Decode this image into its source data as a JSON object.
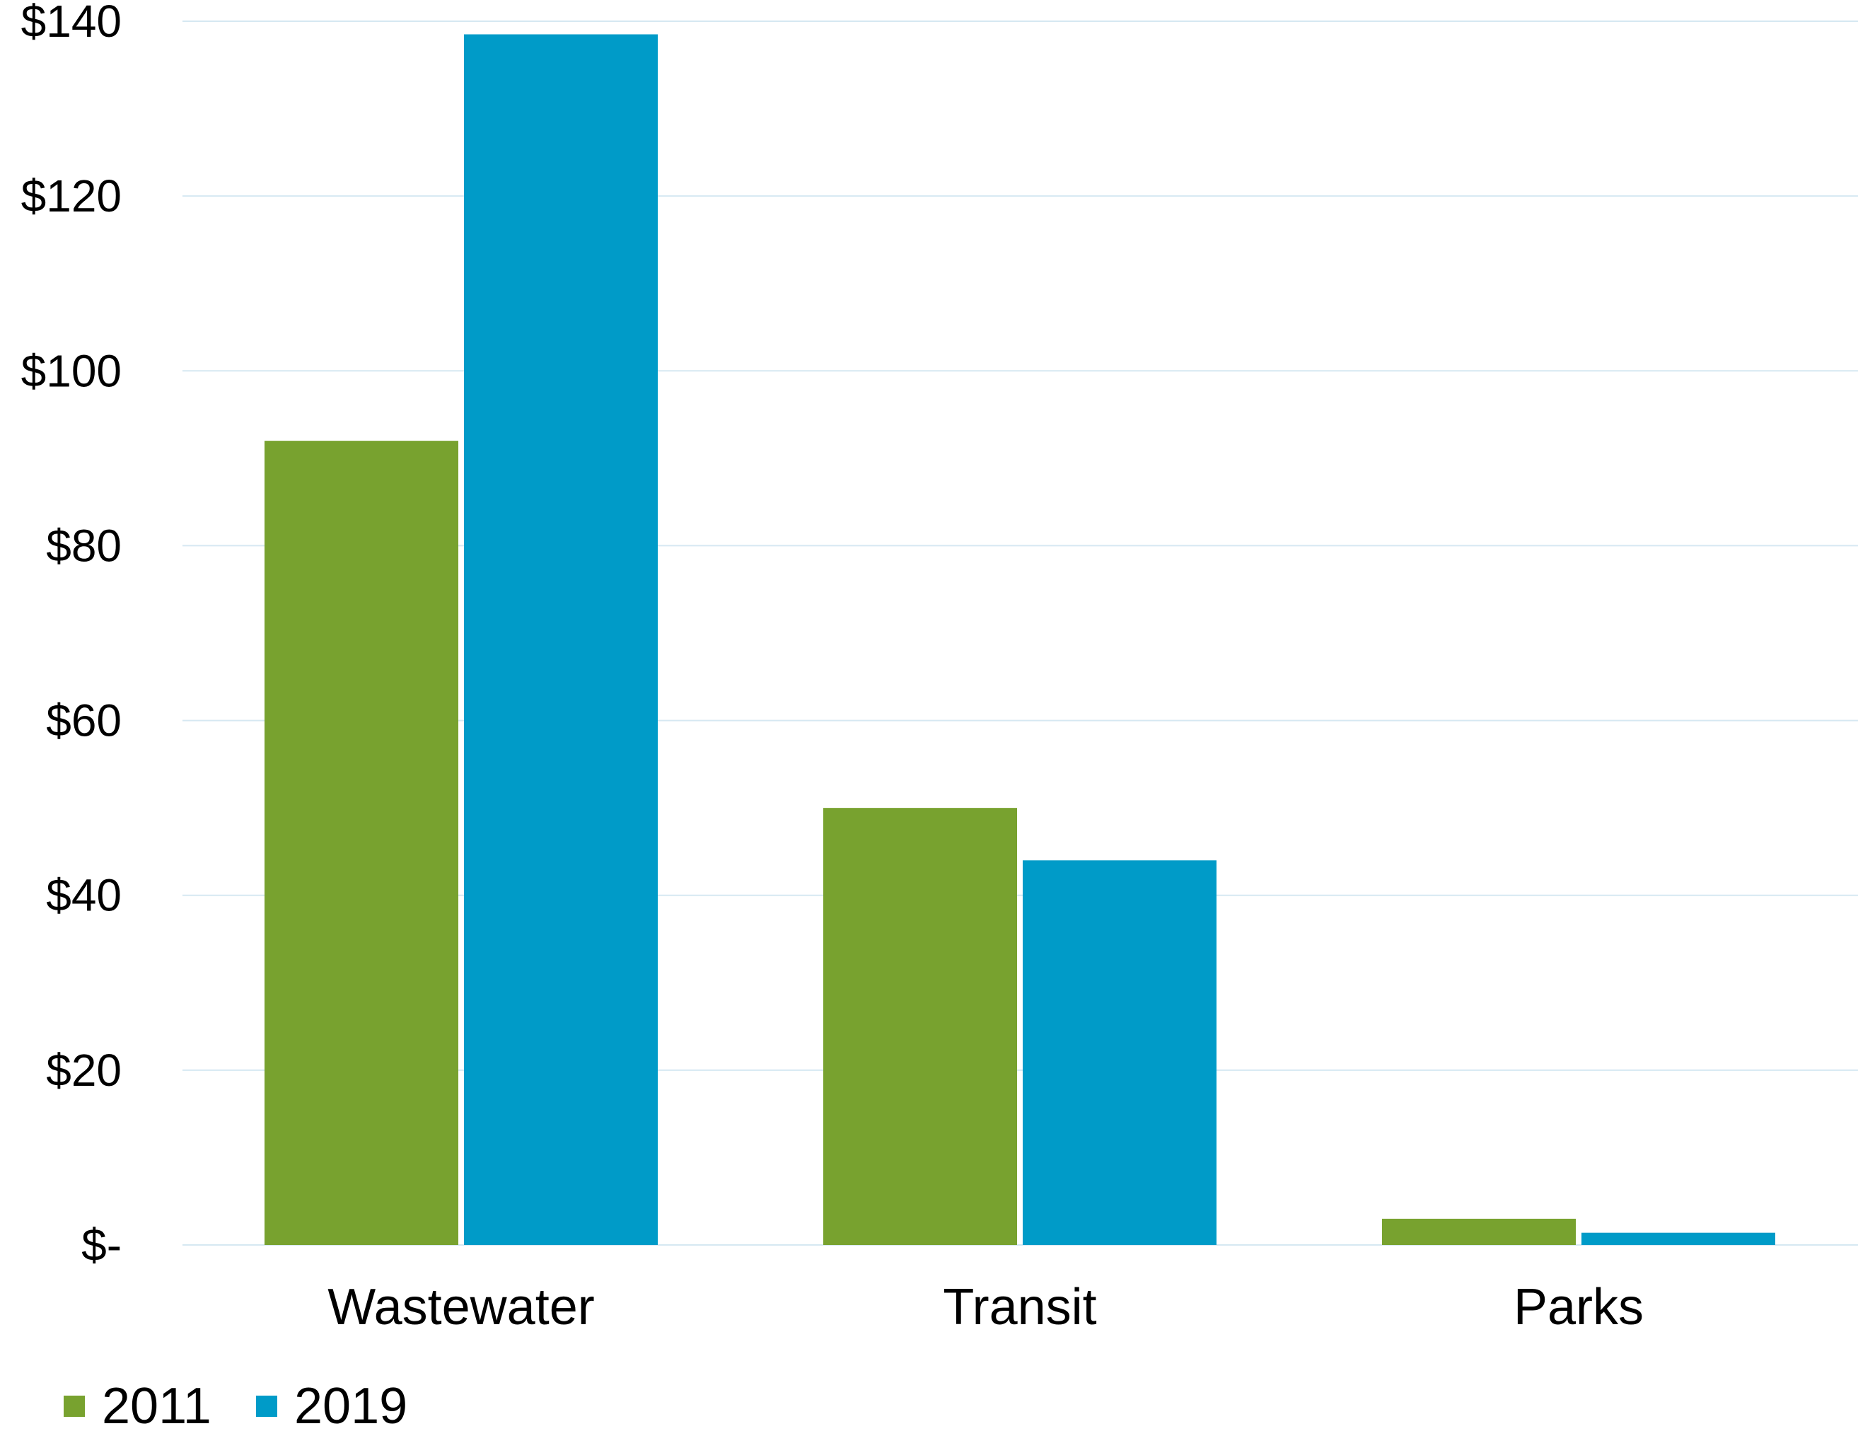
{
  "chart_data": {
    "type": "bar",
    "categories": [
      "Wastewater",
      "Transit",
      "Parks"
    ],
    "series": [
      {
        "name": "2011",
        "values": [
          92,
          50,
          3
        ],
        "color": "#78A22F"
      },
      {
        "name": "2019",
        "values": [
          138.5,
          44,
          1.4
        ],
        "color": "#009BC8"
      }
    ],
    "ylim": [
      0,
      140
    ],
    "yticks": [
      0,
      20,
      40,
      60,
      80,
      100,
      120,
      140
    ],
    "ytick_labels": [
      "$-",
      "$20",
      "$40",
      "$60",
      "$80",
      "$100",
      "$120",
      "$140"
    ],
    "grid": true,
    "grid_color": "#D6E8F2",
    "legend_position": "bottom-left",
    "title": "",
    "xlabel": "",
    "ylabel": ""
  }
}
